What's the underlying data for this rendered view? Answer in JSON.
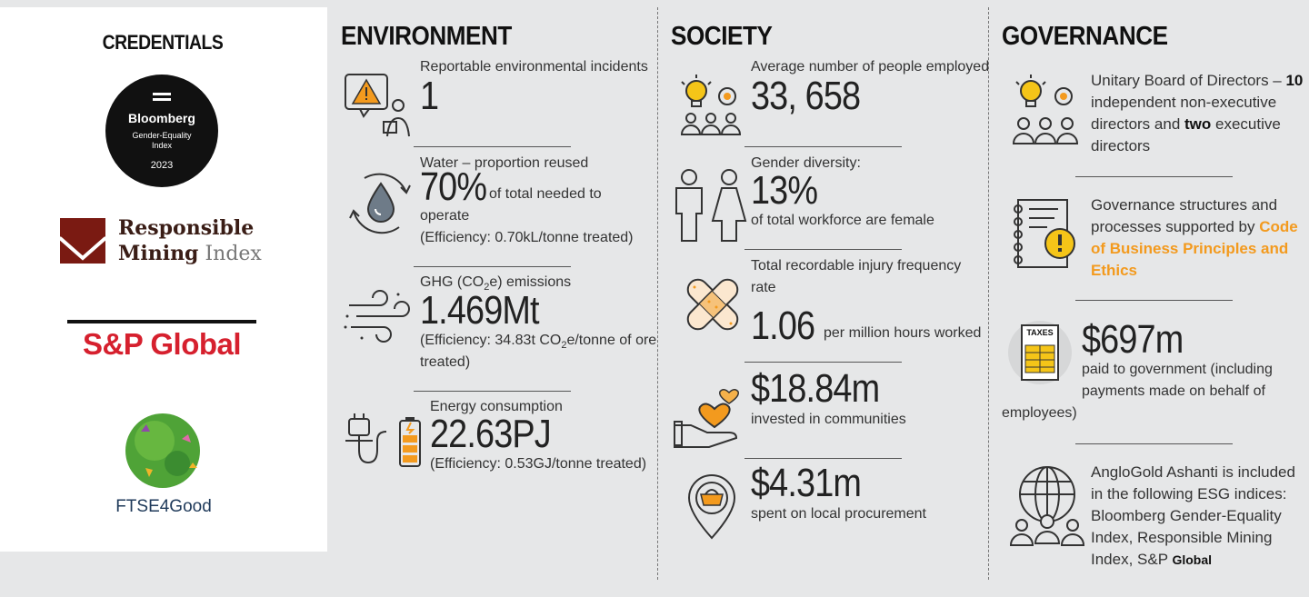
{
  "credentials": {
    "title": "CREDENTIALS",
    "bloomberg": {
      "name": "Bloomberg",
      "line1": "Gender-Equality",
      "line2": "Index",
      "year": "2023"
    },
    "rmi": {
      "line1": "Responsible",
      "line2a": "Mining",
      "line2b": "Index"
    },
    "sp": {
      "name": "S&P Global"
    },
    "ftse": {
      "name": "FTSE4Good"
    }
  },
  "environment": {
    "heading": "ENVIRONMENT",
    "incidents": {
      "label": "Reportable environmental incidents",
      "value": "1"
    },
    "water": {
      "label": "Water – proportion reused",
      "value": "70%",
      "suffix": "of total needed to",
      "line2": "operate",
      "line3": "(Efficiency: 0.70kL/tonne treated)"
    },
    "ghg": {
      "label_pre": "GHG (CO",
      "label_sub": "2",
      "label_post": "e) emissions",
      "value": "1.469Mt",
      "line1_pre": "(Efficiency: 34.83t CO",
      "line1_sub": "2",
      "line1_post": "e/tonne of ore",
      "line2": "treated)"
    },
    "energy": {
      "label": "Energy consumption",
      "value": "22.63PJ",
      "line1": "(Efficiency: 0.53GJ/tonne treated)"
    }
  },
  "society": {
    "heading": "SOCIETY",
    "employed": {
      "label": "Average number of people employed",
      "value": "33, 658"
    },
    "gender": {
      "label": "Gender diversity:",
      "value": "13%",
      "line1": "of total workforce are female"
    },
    "injury": {
      "label1": "Total recordable injury frequency",
      "label2": "rate",
      "value": "1.06",
      "suffix": "per million hours worked"
    },
    "communities": {
      "value": "$18.84m",
      "line1": "invested in communities"
    },
    "procurement": {
      "value": "$4.31m",
      "line1": "spent on local procurement"
    }
  },
  "governance": {
    "heading": "GOVERNANCE",
    "board": {
      "pre": "Unitary Board of Directors – ",
      "num": "10",
      "line2": "independent non-executive",
      "line3_pre": "directors and ",
      "line3_bold": "two",
      "line3_post": " executive",
      "line4": "directors"
    },
    "structures": {
      "line1": "Governance structures and",
      "line2_pre": "processes supported by ",
      "line2_link": "Code",
      "line3": "of Business Principles and",
      "line4": "Ethics"
    },
    "taxes": {
      "icon_label": "TAXES",
      "value": "$697m",
      "line1": "paid to government (including",
      "line2": "payments made on behalf of",
      "line3": "employees)"
    },
    "indices": {
      "line1": "AngloGold Ashanti is included",
      "line2": "in the following ESG indices:",
      "line3": "Bloomberg Gender-Equality",
      "line4": "Index, Responsible Mining",
      "line5_pre": "Index, S&P ",
      "line5_bold": "Global"
    }
  },
  "colors": {
    "orange": "#f39a1e",
    "sp_red": "#d6202e",
    "rmi_red": "#7a1a12",
    "bg": "#e6e7e8"
  }
}
